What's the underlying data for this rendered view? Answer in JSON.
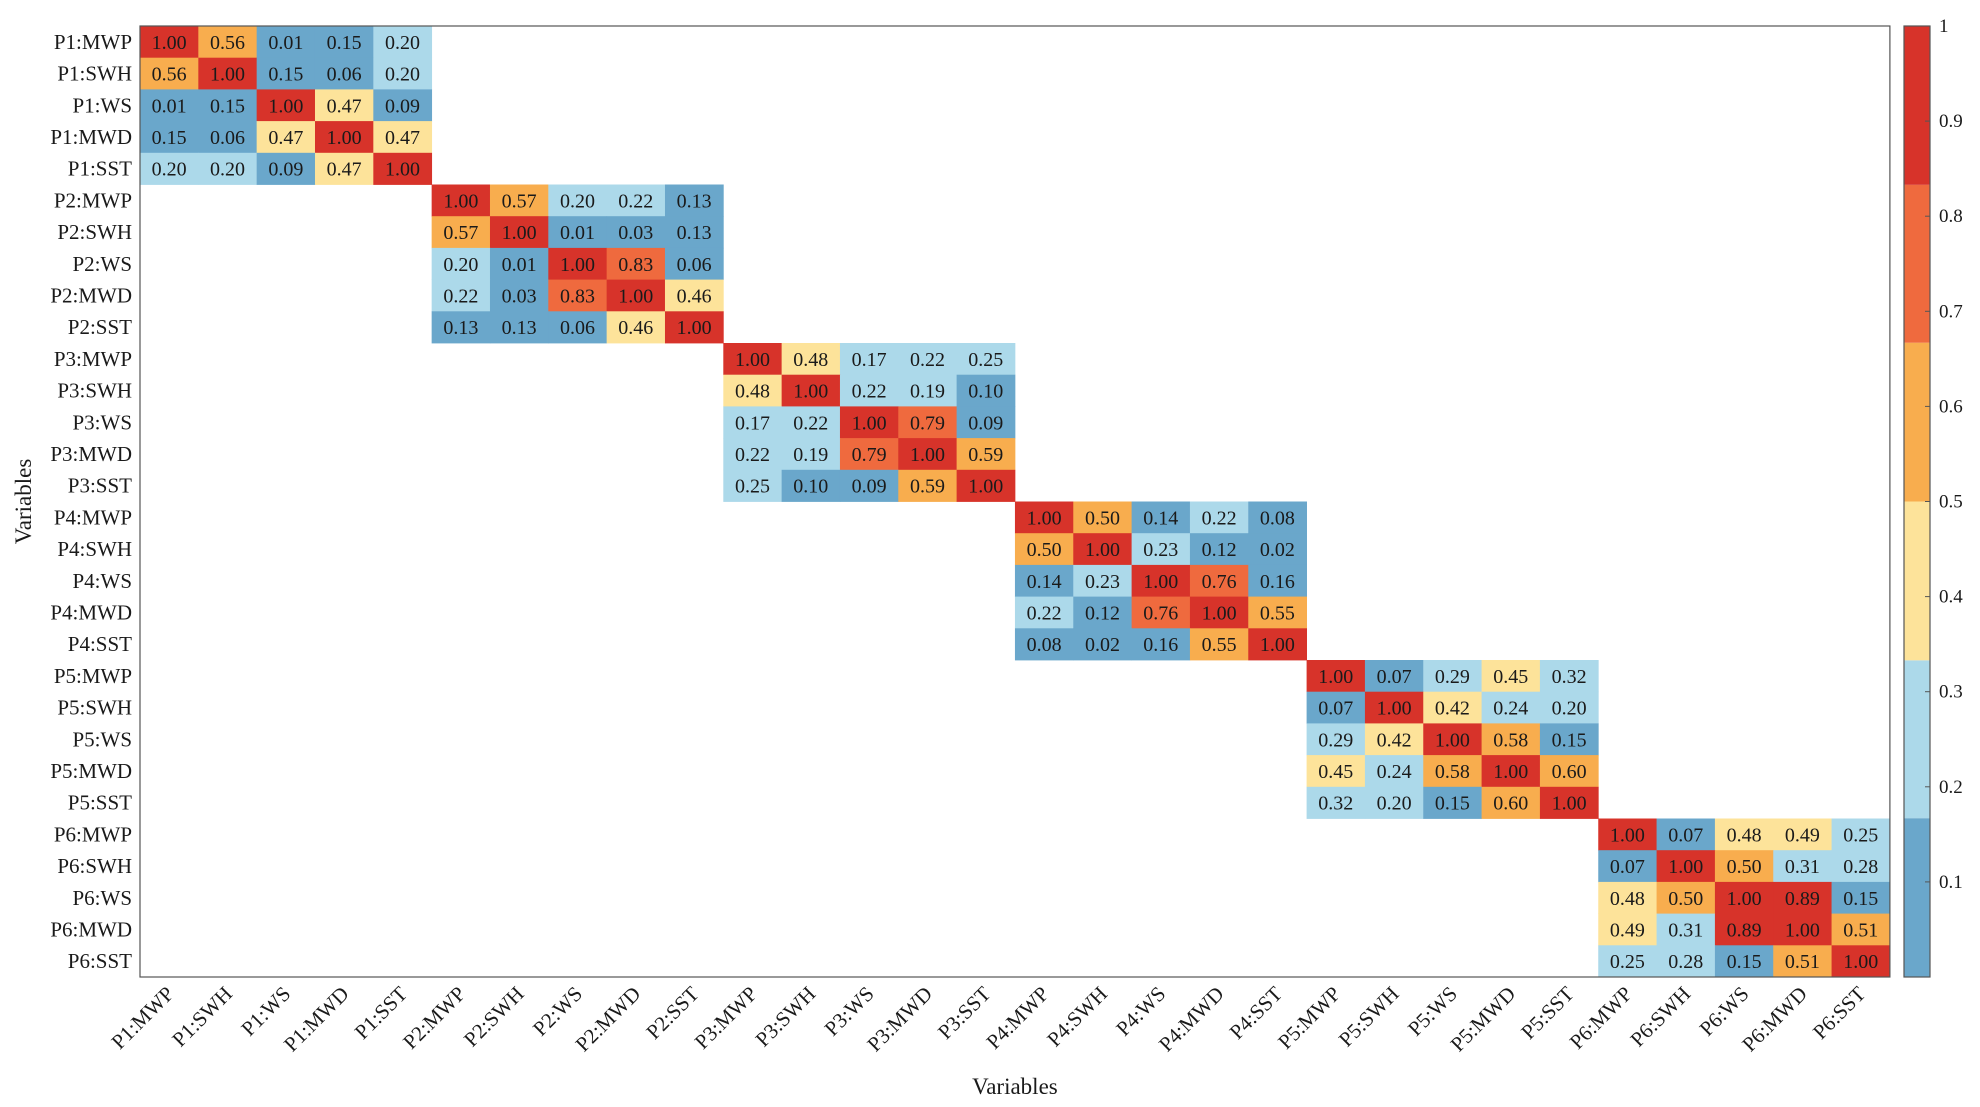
{
  "chart_data": {
    "type": "heatmap",
    "title": "",
    "xlabel": "Variables",
    "ylabel": "Variables",
    "variables": [
      "P1:MWP",
      "P1:SWH",
      "P1:WS",
      "P1:MWD",
      "P1:SST",
      "P2:MWP",
      "P2:SWH",
      "P2:WS",
      "P2:MWD",
      "P2:SST",
      "P3:MWP",
      "P3:SWH",
      "P3:WS",
      "P3:MWD",
      "P3:SST",
      "P4:MWP",
      "P4:SWH",
      "P4:WS",
      "P4:MWD",
      "P4:SST",
      "P5:MWP",
      "P5:SWH",
      "P5:WS",
      "P5:MWD",
      "P5:SST",
      "P6:MWP",
      "P6:SWH",
      "P6:WS",
      "P6:MWD",
      "P6:SST"
    ],
    "blocks": [
      {
        "name": "P1",
        "matrix": [
          [
            "1.00",
            "0.56",
            "0.01",
            "0.15",
            "0.20"
          ],
          [
            "0.56",
            "1.00",
            "0.15",
            "0.06",
            "0.20"
          ],
          [
            "0.01",
            "0.15",
            "1.00",
            "0.47",
            "0.09"
          ],
          [
            "0.15",
            "0.06",
            "0.47",
            "1.00",
            "0.47"
          ],
          [
            "0.20",
            "0.20",
            "0.09",
            "0.47",
            "1.00"
          ]
        ]
      },
      {
        "name": "P2",
        "matrix": [
          [
            "1.00",
            "0.57",
            "0.20",
            "0.22",
            "0.13"
          ],
          [
            "0.57",
            "1.00",
            "0.01",
            "0.03",
            "0.13"
          ],
          [
            "0.20",
            "0.01",
            "1.00",
            "0.83",
            "0.06"
          ],
          [
            "0.22",
            "0.03",
            "0.83",
            "1.00",
            "0.46"
          ],
          [
            "0.13",
            "0.13",
            "0.06",
            "0.46",
            "1.00"
          ]
        ]
      },
      {
        "name": "P3",
        "matrix": [
          [
            "1.00",
            "0.48",
            "0.17",
            "0.22",
            "0.25"
          ],
          [
            "0.48",
            "1.00",
            "0.22",
            "0.19",
            "0.10"
          ],
          [
            "0.17",
            "0.22",
            "1.00",
            "0.79",
            "0.09"
          ],
          [
            "0.22",
            "0.19",
            "0.79",
            "1.00",
            "0.59"
          ],
          [
            "0.25",
            "0.10",
            "0.09",
            "0.59",
            "1.00"
          ]
        ]
      },
      {
        "name": "P4",
        "matrix": [
          [
            "1.00",
            "0.50",
            "0.14",
            "0.22",
            "0.08"
          ],
          [
            "0.50",
            "1.00",
            "0.23",
            "0.12",
            "0.02"
          ],
          [
            "0.14",
            "0.23",
            "1.00",
            "0.76",
            "0.16"
          ],
          [
            "0.22",
            "0.12",
            "0.76",
            "1.00",
            "0.55"
          ],
          [
            "0.08",
            "0.02",
            "0.16",
            "0.55",
            "1.00"
          ]
        ]
      },
      {
        "name": "P5",
        "matrix": [
          [
            "1.00",
            "0.07",
            "0.29",
            "0.45",
            "0.32"
          ],
          [
            "0.07",
            "1.00",
            "0.42",
            "0.24",
            "0.20"
          ],
          [
            "0.29",
            "0.42",
            "1.00",
            "0.58",
            "0.15"
          ],
          [
            "0.45",
            "0.24",
            "0.58",
            "1.00",
            "0.60"
          ],
          [
            "0.32",
            "0.20",
            "0.15",
            "0.60",
            "1.00"
          ]
        ]
      },
      {
        "name": "P6",
        "matrix": [
          [
            "1.00",
            "0.07",
            "0.48",
            "0.49",
            "0.25"
          ],
          [
            "0.07",
            "1.00",
            "0.50",
            "0.31",
            "0.28"
          ],
          [
            "0.48",
            "0.50",
            "1.00",
            "0.89",
            "0.15"
          ],
          [
            "0.49",
            "0.31",
            "0.89",
            "1.00",
            "0.51"
          ],
          [
            "0.25",
            "0.28",
            "0.15",
            "0.51",
            "1.00"
          ]
        ]
      }
    ],
    "colorbar": {
      "range": [
        0,
        1
      ],
      "ticks": [
        "0.1",
        "0.2",
        "0.3",
        "0.4",
        "0.5",
        "0.6",
        "0.7",
        "0.8",
        "0.9",
        "1"
      ],
      "tick_values": [
        0.1,
        0.2,
        0.3,
        0.4,
        0.5,
        0.6,
        0.7,
        0.8,
        0.9,
        1.0
      ],
      "bands": [
        {
          "from": 0.0,
          "to": 0.167,
          "color": "#6aa7cb"
        },
        {
          "from": 0.167,
          "to": 0.333,
          "color": "#acd9ea"
        },
        {
          "from": 0.333,
          "to": 0.5,
          "color": "#fde39a"
        },
        {
          "from": 0.5,
          "to": 0.667,
          "color": "#f8ad4e"
        },
        {
          "from": 0.667,
          "to": 0.833,
          "color": "#ef6a3e"
        },
        {
          "from": 0.833,
          "to": 1.0,
          "color": "#d7332a"
        }
      ]
    },
    "grid": false
  }
}
